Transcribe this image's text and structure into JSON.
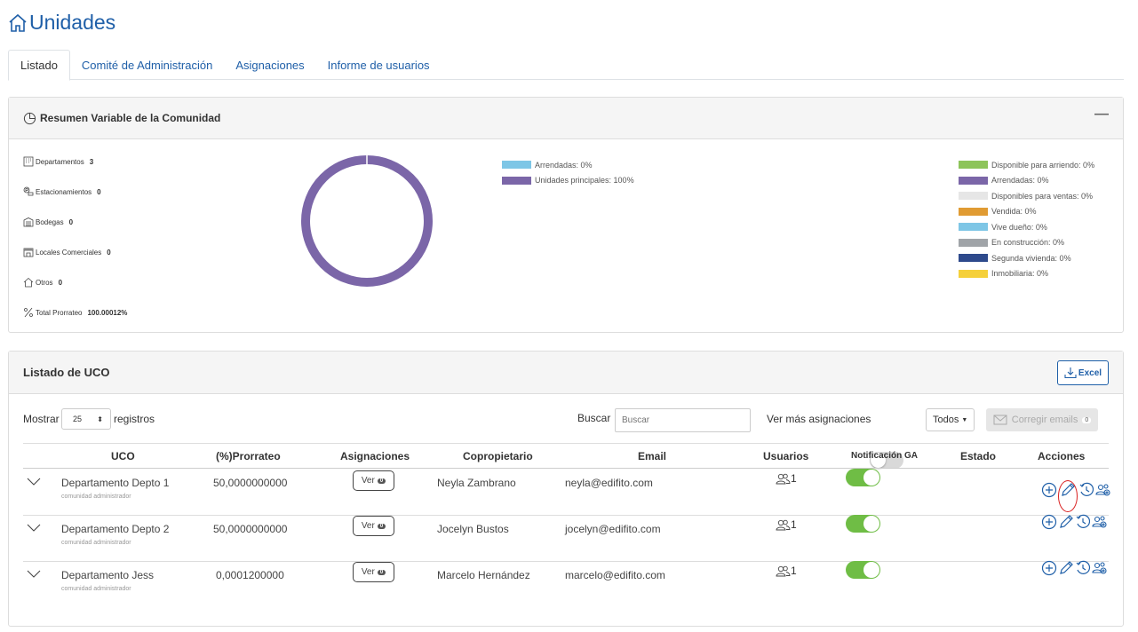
{
  "page": {
    "title": "Unidades",
    "accent": "#1f5fa8"
  },
  "tabs": [
    {
      "label": "Listado",
      "active": true
    },
    {
      "label": "Comité de Administración",
      "active": false
    },
    {
      "label": "Asignaciones",
      "active": false
    },
    {
      "label": "Informe de usuarios",
      "active": false
    }
  ],
  "summary": {
    "title": "Resumen Variable de la Comunidad",
    "collapse": "—",
    "stats": [
      {
        "label": "Departamentos",
        "value": "3",
        "icon": "building-icon"
      },
      {
        "label": "Estacionamientos",
        "value": "0",
        "icon": "parking-icon"
      },
      {
        "label": "Bodegas",
        "value": "0",
        "icon": "warehouse-icon"
      },
      {
        "label": "Locales Comerciales",
        "value": "0",
        "icon": "store-icon"
      },
      {
        "label": "Otros",
        "value": "0",
        "icon": "home-icon"
      },
      {
        "label": "Total Prorrateo",
        "value": "100.00012%",
        "icon": "percent-icon"
      }
    ],
    "donut": {
      "slices": [
        {
          "label": "Arrendadas: 0%",
          "value": 0,
          "color": "#7ec6e6"
        },
        {
          "label": "Unidades principales: 100%",
          "value": 100,
          "color": "#7b66a8"
        }
      ]
    },
    "legend_right": [
      {
        "label": "Disponible para arriendo: 0%",
        "color": "#8dc45a"
      },
      {
        "label": "Arrendadas: 0%",
        "color": "#7b66a8"
      },
      {
        "label": "Disponibles para ventas: 0%",
        "color": "#e6e6e6"
      },
      {
        "label": "Vendida: 0%",
        "color": "#e09b33"
      },
      {
        "label": "Vive dueño: 0%",
        "color": "#7ec6e6"
      },
      {
        "label": "En construcción: 0%",
        "color": "#a0a4a8"
      },
      {
        "label": "Segunda vivienda: 0%",
        "color": "#2e4a8c"
      },
      {
        "label": "Inmobiliaria: 0%",
        "color": "#f5d03a"
      }
    ]
  },
  "list": {
    "title": "Listado de UCO",
    "excel_label": "Excel",
    "show_label": "Mostrar",
    "show_value": "25",
    "records_label": "registros",
    "search_label": "Buscar",
    "search_placeholder": "Buscar",
    "more_assign_label": "Ver más asignaciones",
    "filter_label": "Todos",
    "fix_emails_label": "Corregir emails",
    "fix_emails_count": "0",
    "columns": [
      "UCO",
      "(%)Prorrateo",
      "Asignaciones",
      "Copropietario",
      "Email",
      "Usuarios",
      "Notificación GA",
      "Estado",
      "Acciones"
    ],
    "rows": [
      {
        "uco": "Departamento Depto 1",
        "sub": "comunidad administrador",
        "prorrateo": "50,0000000000",
        "ver": "Ver",
        "ver_count": "0",
        "owner": "Neyla Zambrano",
        "email": "neyla@edifito.com",
        "users": "1",
        "notify": true
      },
      {
        "uco": "Departamento Depto 2",
        "sub": "comunidad administrador",
        "prorrateo": "50,0000000000",
        "ver": "Ver",
        "ver_count": "0",
        "owner": "Jocelyn Bustos",
        "email": "jocelyn@edifito.com",
        "users": "1",
        "notify": true
      },
      {
        "uco": "Departamento Jess",
        "sub": "comunidad administrador",
        "prorrateo": "0,0001200000",
        "ver": "Ver",
        "ver_count": "0",
        "owner": "Marcelo Hernández",
        "email": "marcelo@edifito.com",
        "users": "1",
        "notify": true
      }
    ]
  }
}
